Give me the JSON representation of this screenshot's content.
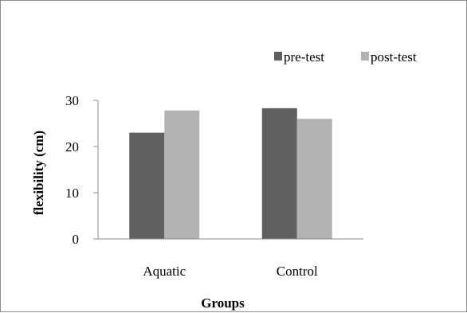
{
  "chart_data": {
    "type": "bar",
    "categories": [
      "Aquatic",
      "Control"
    ],
    "series": [
      {
        "name": "pre-test",
        "values": [
          23,
          28.3
        ],
        "color": "#606060"
      },
      {
        "name": "post-test",
        "values": [
          27.8,
          26
        ],
        "color": "#b2b2b2"
      }
    ],
    "xlabel": "Groups",
    "ylabel": "flexibility (cm)",
    "ylim": [
      0,
      30
    ],
    "yticks": [
      0,
      10,
      20,
      30
    ],
    "grid": false,
    "legend_position": "top-right"
  }
}
